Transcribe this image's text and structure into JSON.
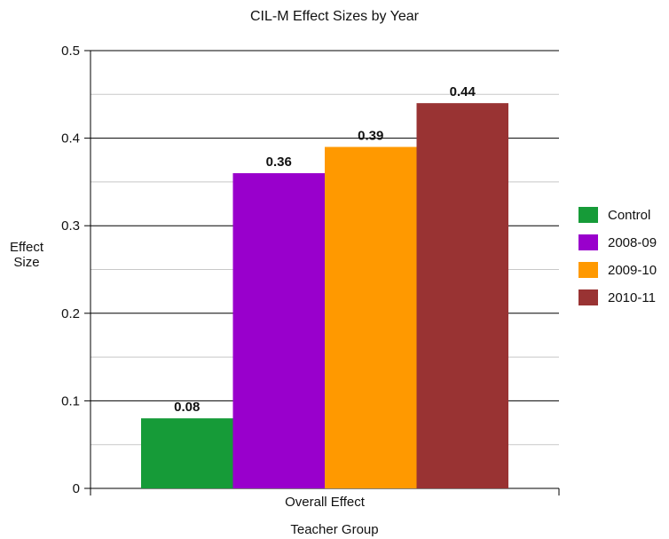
{
  "chart_data": {
    "type": "bar",
    "title": "CIL-M Effect Sizes by Year",
    "xlabel": "Teacher Group",
    "ylabel_lines": [
      "Effect",
      "Size"
    ],
    "categories": [
      "Overall Effect"
    ],
    "ylim": [
      0,
      0.5
    ],
    "yticks": [
      "0",
      "0.1",
      "0.2",
      "0.3",
      "0.4",
      "0.5"
    ],
    "grid": true,
    "legend_position": "right",
    "series": [
      {
        "name": "Control",
        "values": [
          0.08
        ],
        "label": "0.08",
        "color": "#169b38"
      },
      {
        "name": "2008-09",
        "values": [
          0.36
        ],
        "label": "0.36",
        "color": "#9900cc"
      },
      {
        "name": "2009-10",
        "values": [
          0.39
        ],
        "label": "0.39",
        "color": "#ff9900"
      },
      {
        "name": "2010-11",
        "values": [
          0.44
        ],
        "label": "0.44",
        "color": "#993333"
      }
    ]
  }
}
